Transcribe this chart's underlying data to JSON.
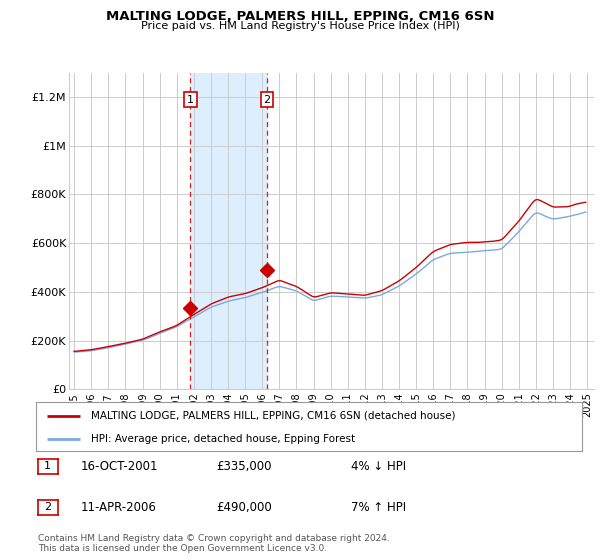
{
  "title": "MALTING LODGE, PALMERS HILL, EPPING, CM16 6SN",
  "subtitle": "Price paid vs. HM Land Registry's House Price Index (HPI)",
  "ylabel_ticks": [
    "£0",
    "£200K",
    "£400K",
    "£600K",
    "£800K",
    "£1M",
    "£1.2M"
  ],
  "ytick_values": [
    0,
    200000,
    400000,
    600000,
    800000,
    1000000,
    1200000
  ],
  "ylim": [
    0,
    1300000
  ],
  "xlim_start": 1994.7,
  "xlim_end": 2025.4,
  "purchase1_year": 2001.79,
  "purchase1_price": 335000,
  "purchase1_label": "1",
  "purchase2_year": 2006.28,
  "purchase2_price": 490000,
  "purchase2_label": "2",
  "legend_house_label": "MALTING LODGE, PALMERS HILL, EPPING, CM16 6SN (detached house)",
  "legend_hpi_label": "HPI: Average price, detached house, Epping Forest",
  "footer": "Contains HM Land Registry data © Crown copyright and database right 2024.\nThis data is licensed under the Open Government Licence v3.0.",
  "house_color": "#cc0000",
  "hpi_color": "#7aaadd",
  "highlight_color": "#ddeeff",
  "background_color": "#ffffff",
  "grid_color": "#cccccc"
}
